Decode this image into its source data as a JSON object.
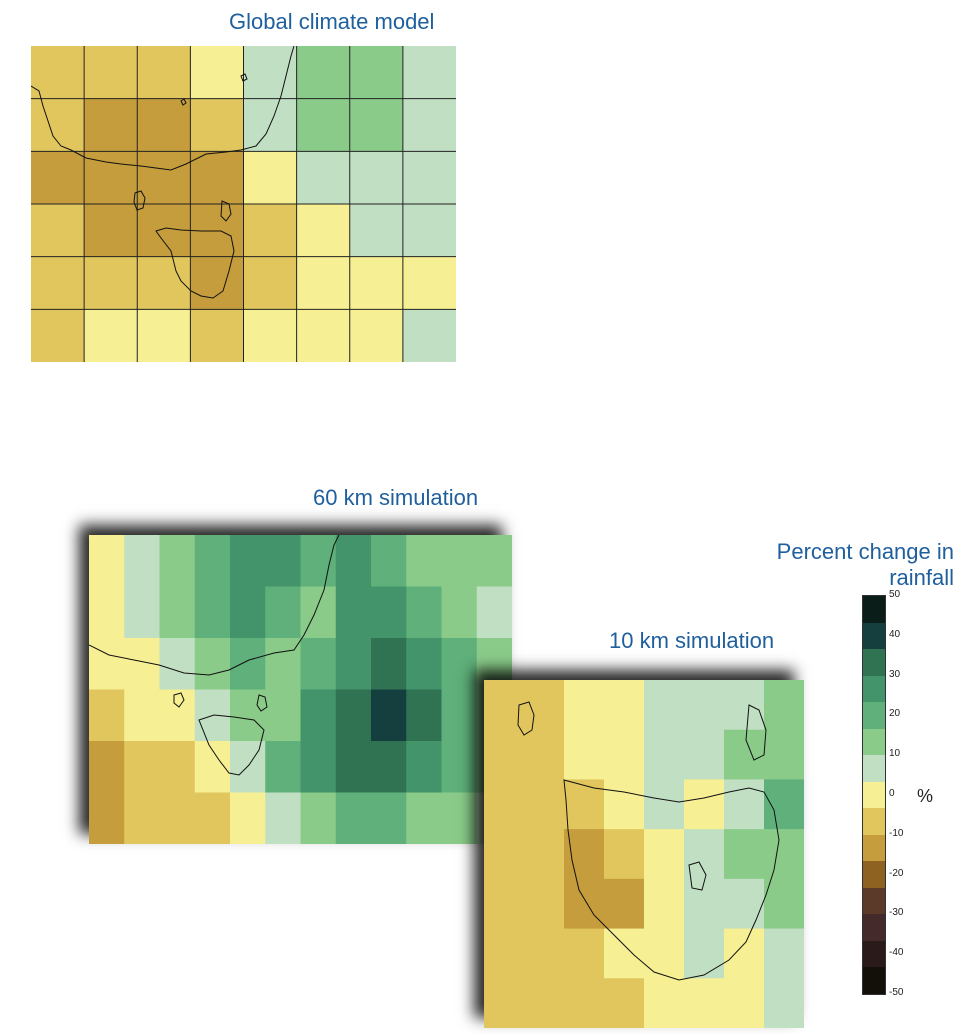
{
  "titles": {
    "global": "Global climate model",
    "sim60": "60 km simulation",
    "sim10": "10 km simulation"
  },
  "legend": {
    "title_line1": "Percent change in",
    "title_line2": "rainfall",
    "unit": "%",
    "ticks": [
      "50",
      "40",
      "30",
      "20",
      "10",
      "0",
      "-10",
      "-20",
      "-30",
      "-40",
      "-50"
    ],
    "colors": [
      "#0b1d18",
      "#153f3f",
      "#2f7353",
      "#43936b",
      "#5fb07a",
      "#8acb8a",
      "#c1dfc2",
      "#f7ef93",
      "#e0c65c",
      "#c59d3c",
      "#8e6321",
      "#5b3a2a",
      "#452a2c",
      "#2b1a1a",
      "#121008"
    ]
  },
  "global_model": {
    "grid": [
      [
        "#e0c65c",
        "#e0c65c",
        "#e0c65c",
        "#f7ef93",
        "#c1dfc2",
        "#8acb8a",
        "#8acb8a",
        "#c1dfc2"
      ],
      [
        "#e0c65c",
        "#c59d3c",
        "#c59d3c",
        "#e0c65c",
        "#c1dfc2",
        "#8acb8a",
        "#8acb8a",
        "#c1dfc2"
      ],
      [
        "#c59d3c",
        "#c59d3c",
        "#c59d3c",
        "#c59d3c",
        "#f7ef93",
        "#c1dfc2",
        "#c1dfc2",
        "#c1dfc2"
      ],
      [
        "#e0c65c",
        "#c59d3c",
        "#c59d3c",
        "#c59d3c",
        "#e0c65c",
        "#f7ef93",
        "#c1dfc2",
        "#c1dfc2"
      ],
      [
        "#e0c65c",
        "#e0c65c",
        "#e0c65c",
        "#c59d3c",
        "#e0c65c",
        "#f7ef93",
        "#f7ef93",
        "#f7ef93"
      ],
      [
        "#e0c65c",
        "#f7ef93",
        "#f7ef93",
        "#e0c65c",
        "#f7ef93",
        "#f7ef93",
        "#f7ef93",
        "#c1dfc2"
      ]
    ]
  },
  "sim60": {
    "grid": [
      [
        "#f7ef93",
        "#c1dfc2",
        "#8acb8a",
        "#5fb07a",
        "#43936b",
        "#43936b",
        "#5fb07a",
        "#43936b",
        "#5fb07a",
        "#8acb8a",
        "#8acb8a",
        "#8acb8a"
      ],
      [
        "#f7ef93",
        "#c1dfc2",
        "#8acb8a",
        "#5fb07a",
        "#43936b",
        "#5fb07a",
        "#8acb8a",
        "#43936b",
        "#43936b",
        "#5fb07a",
        "#8acb8a",
        "#c1dfc2"
      ],
      [
        "#f7ef93",
        "#f7ef93",
        "#c1dfc2",
        "#8acb8a",
        "#5fb07a",
        "#8acb8a",
        "#5fb07a",
        "#43936b",
        "#2f7353",
        "#43936b",
        "#5fb07a",
        "#8acb8a"
      ],
      [
        "#e0c65c",
        "#f7ef93",
        "#f7ef93",
        "#c1dfc2",
        "#8acb8a",
        "#8acb8a",
        "#43936b",
        "#2f7353",
        "#153f3f",
        "#2f7353",
        "#5fb07a",
        "#8acb8a"
      ],
      [
        "#c59d3c",
        "#e0c65c",
        "#e0c65c",
        "#f7ef93",
        "#c1dfc2",
        "#5fb07a",
        "#43936b",
        "#2f7353",
        "#2f7353",
        "#43936b",
        "#5fb07a",
        "#8acb8a"
      ],
      [
        "#c59d3c",
        "#e0c65c",
        "#e0c65c",
        "#e0c65c",
        "#f7ef93",
        "#c1dfc2",
        "#8acb8a",
        "#5fb07a",
        "#5fb07a",
        "#8acb8a",
        "#8acb8a",
        "#c1dfc2"
      ]
    ]
  },
  "sim10": {
    "grid": [
      [
        "#e0c65c",
        "#e0c65c",
        "#f7ef93",
        "#f7ef93",
        "#c1dfc2",
        "#c1dfc2",
        "#c1dfc2",
        "#8acb8a"
      ],
      [
        "#e0c65c",
        "#e0c65c",
        "#f7ef93",
        "#f7ef93",
        "#c1dfc2",
        "#c1dfc2",
        "#8acb8a",
        "#8acb8a"
      ],
      [
        "#e0c65c",
        "#e0c65c",
        "#e0c65c",
        "#f7ef93",
        "#c1dfc2",
        "#f7ef93",
        "#c1dfc2",
        "#5fb07a"
      ],
      [
        "#e0c65c",
        "#e0c65c",
        "#c59d3c",
        "#e0c65c",
        "#f7ef93",
        "#c1dfc2",
        "#8acb8a",
        "#8acb8a"
      ],
      [
        "#e0c65c",
        "#e0c65c",
        "#c59d3c",
        "#c59d3c",
        "#f7ef93",
        "#c1dfc2",
        "#c1dfc2",
        "#8acb8a"
      ],
      [
        "#e0c65c",
        "#e0c65c",
        "#e0c65c",
        "#f7ef93",
        "#f7ef93",
        "#c1dfc2",
        "#f7ef93",
        "#c1dfc2"
      ],
      [
        "#e0c65c",
        "#e0c65c",
        "#e0c65c",
        "#e0c65c",
        "#f7ef93",
        "#f7ef93",
        "#f7ef93",
        "#c1dfc2"
      ]
    ]
  }
}
